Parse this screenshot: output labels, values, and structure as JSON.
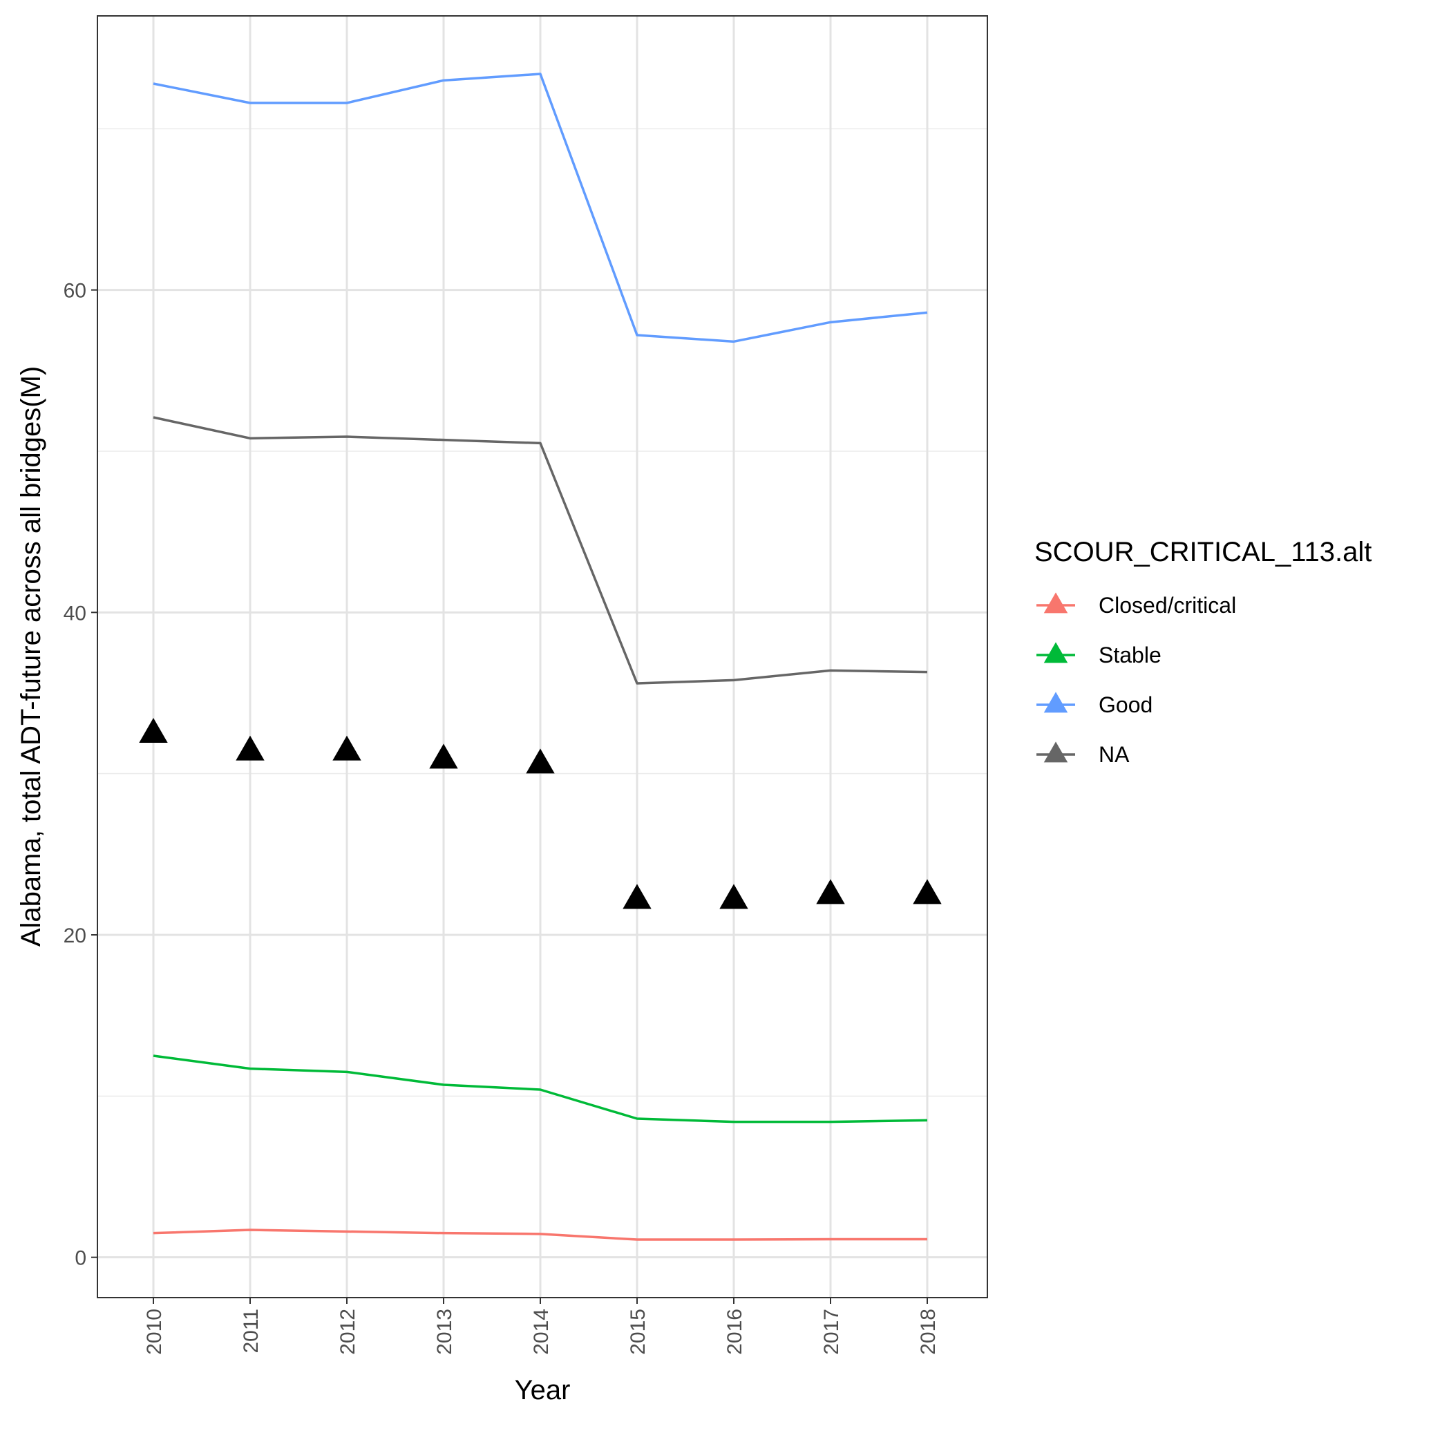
{
  "chart_data": {
    "type": "line",
    "xlabel": "Year",
    "ylabel": "Alabama, total ADT-future across all bridges(M)",
    "x": [
      "2010",
      "2011",
      "2012",
      "2013",
      "2014",
      "2015",
      "2016",
      "2017",
      "2018"
    ],
    "ylim": [
      -2.5,
      77
    ],
    "yticks": [
      0,
      20,
      40,
      60
    ],
    "grid": true,
    "legend_title": "SCOUR_CRITICAL_113.alt",
    "legend_position": "right",
    "series": [
      {
        "name": "Closed/critical",
        "color": "#F8766D",
        "values": [
          1.5,
          1.7,
          1.6,
          1.5,
          1.45,
          1.1,
          1.1,
          1.12,
          1.12
        ]
      },
      {
        "name": "Stable",
        "color": "#00BA38",
        "values": [
          12.5,
          11.7,
          11.5,
          10.7,
          10.4,
          8.6,
          8.4,
          8.4,
          8.5
        ]
      },
      {
        "name": "Good",
        "color": "#619CFF",
        "values": [
          72.8,
          71.6,
          71.6,
          73.0,
          73.4,
          57.2,
          56.8,
          58.0,
          58.6
        ]
      },
      {
        "name": "NA",
        "color": "#666666",
        "values": [
          52.1,
          50.8,
          50.9,
          50.7,
          50.5,
          35.6,
          35.8,
          36.4,
          36.3
        ]
      }
    ],
    "points": {
      "shape": "triangle",
      "color": "#000000",
      "values": [
        32.5,
        31.4,
        31.4,
        30.9,
        30.6,
        22.2,
        22.2,
        22.5,
        22.5
      ]
    }
  }
}
